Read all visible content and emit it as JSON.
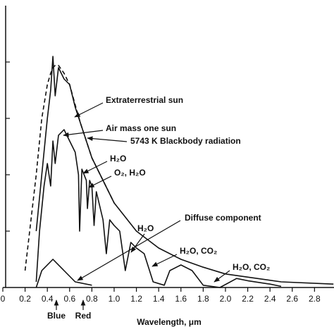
{
  "chart_data": {
    "type": "line",
    "x_label": "Wavelength, μm",
    "xlim": [
      0,
      2.975
    ],
    "ylim": [
      0,
      2.5
    ],
    "xticks": [
      0,
      0.2,
      0.4,
      0.6,
      0.8,
      {
        "value": 1,
        "label": "1.0"
      },
      1.2,
      1.4,
      1.6,
      1.8,
      {
        "value": 2,
        "label": "2.0"
      },
      2.2,
      2.4,
      2.6,
      2.8
    ],
    "yticks": [
      0.5,
      1,
      1.5,
      2
    ],
    "series": [
      {
        "name": "Extraterrestrial sun",
        "color": "#111111",
        "dash": false,
        "x": [
          0.3,
          0.35,
          0.4,
          0.43,
          0.45,
          0.47,
          0.5,
          0.55,
          0.6,
          0.65,
          0.7,
          0.8,
          0.9,
          1,
          1.2,
          1.4,
          1.6,
          1.8,
          2,
          2.5,
          2.97
        ],
        "values": [
          0.5,
          1,
          1.5,
          1.75,
          2.05,
          1.7,
          1.95,
          1.85,
          1.8,
          1.6,
          1.45,
          1.15,
          0.95,
          0.75,
          0.5,
          0.35,
          0.25,
          0.18,
          0.12,
          0.05,
          0.03
        ]
      },
      {
        "name": "5743 K Blackbody radiation",
        "color": "#111111",
        "dash": true,
        "x": [
          0.2,
          0.3,
          0.35,
          0.4,
          0.43,
          0.45,
          0.47,
          0.5,
          0.55,
          0.6,
          0.65,
          0.7,
          0.8,
          0.9,
          1
        ],
        "values": [
          0.15,
          1,
          1.5,
          1.8,
          1.9,
          1.95,
          1.97,
          1.97,
          1.9,
          1.8,
          1.62,
          1.45,
          1.15,
          0.95,
          0.75
        ]
      },
      {
        "name": "Air mass one sun",
        "color": "#111111",
        "dash": false,
        "x": [
          0.3,
          0.33,
          0.37,
          0.4,
          0.43,
          0.45,
          0.47,
          0.5,
          0.55,
          0.6,
          0.65,
          0.68,
          0.69,
          0.71,
          0.75,
          0.76,
          0.78,
          0.8,
          0.82,
          0.84,
          0.9,
          0.93,
          0.96,
          1,
          1.05,
          1.1,
          1.15,
          1.2,
          1.27,
          1.35,
          1.45,
          1.5,
          1.6,
          1.7,
          1.8,
          1.95,
          2.1,
          2.2,
          2.4,
          2.5
        ],
        "values": [
          0.05,
          0.5,
          0.9,
          1.1,
          0.9,
          1.3,
          1.1,
          1.35,
          1.4,
          1.3,
          1.2,
          1,
          0.5,
          1.05,
          0.95,
          0.7,
          0.95,
          0.9,
          0.55,
          0.85,
          0.6,
          0.3,
          0.6,
          0.55,
          0.5,
          0.15,
          0.4,
          0.35,
          0.3,
          0.05,
          0.02,
          0.15,
          0.2,
          0.15,
          0.02,
          0,
          0.08,
          0.06,
          0.03,
          0.01
        ]
      },
      {
        "name": "Diffuse component",
        "color": "#111111",
        "dash": false,
        "x": [
          0.3,
          0.35,
          0.45,
          0.55,
          0.65,
          0.8
        ],
        "values": [
          0,
          0.15,
          0.25,
          0.15,
          0.05,
          0.02
        ]
      }
    ],
    "annotations": [
      "H₂O",
      "O₂, H₂O",
      "H₂O",
      "H₂O, CO₂",
      "H₂O, CO₂"
    ],
    "markers": [
      "Blue",
      "Red"
    ]
  }
}
